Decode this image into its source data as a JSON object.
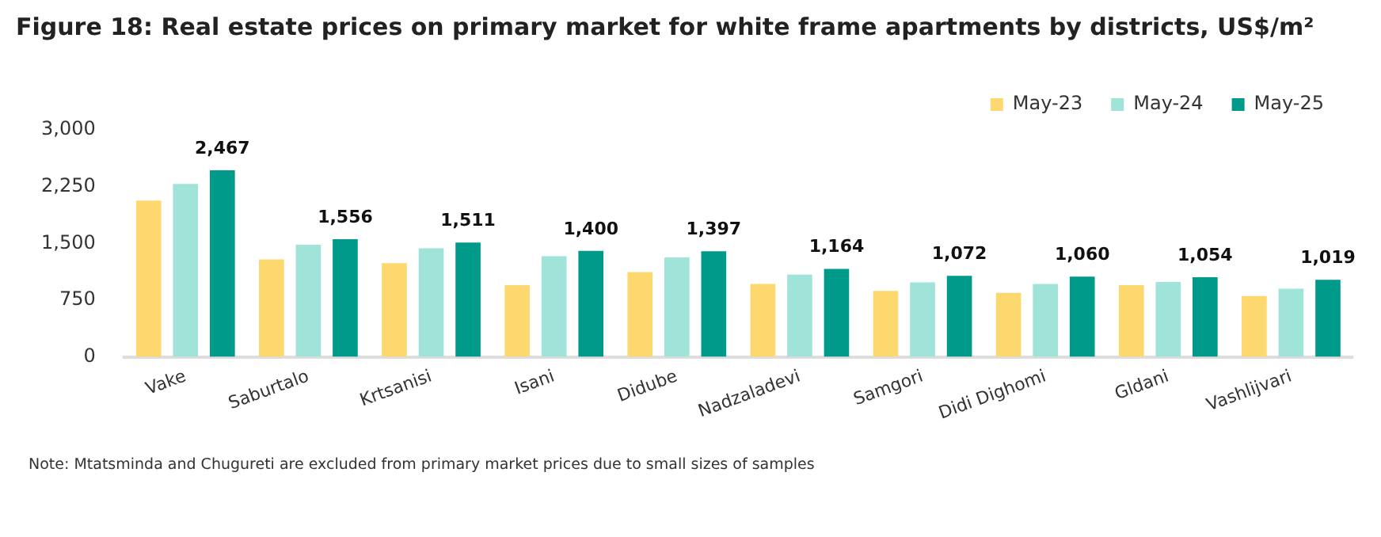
{
  "chart_data": {
    "type": "bar",
    "title": "Figure 18: Real estate prices on primary market for white frame apartments by districts, US$/m²",
    "categories": [
      "Vake",
      "Saburtalo",
      "Krtsanisi",
      "Isani",
      "Didube",
      "Nadzaladevi",
      "Samgori",
      "Didi Dighomi",
      "Gldani",
      "Vashlijvari"
    ],
    "series": [
      {
        "name": "May-23",
        "color": "#fcd86f",
        "values": [
          2065,
          1289,
          1240,
          949,
          1122,
          963,
          873,
          845,
          949,
          804
        ]
      },
      {
        "name": "May-24",
        "color": "#a0e3d8",
        "values": [
          2286,
          1483,
          1434,
          1330,
          1316,
          1088,
          984,
          963,
          991,
          901
        ]
      },
      {
        "name": "May-25",
        "color": "#009a8a",
        "values": [
          2467,
          1556,
          1511,
          1400,
          1397,
          1164,
          1072,
          1060,
          1054,
          1019
        ],
        "value_labels": [
          "2,467",
          "1,556",
          "1,511",
          "1,400",
          "1,397",
          "1,164",
          "1,072",
          "1,060",
          "1,054",
          "1,019"
        ]
      }
    ],
    "ylim": [
      0,
      3000
    ],
    "yticks": [
      {
        "value": 0,
        "label": "0"
      },
      {
        "value": 750,
        "label": "750"
      },
      {
        "value": 1500,
        "label": "1,500"
      },
      {
        "value": 2250,
        "label": "2,250"
      },
      {
        "value": 3000,
        "label": "3,000"
      }
    ],
    "grid": false,
    "legend": "top right",
    "annotations": [
      "Note:  Mtatsminda and Chugureti are excluded from primary market prices due to small sizes of samples"
    ]
  }
}
